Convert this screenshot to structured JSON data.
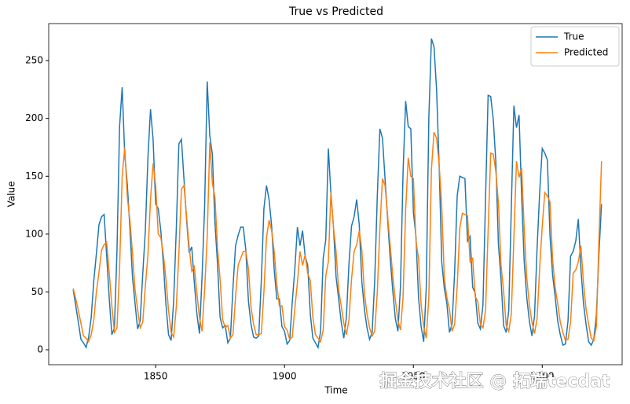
{
  "chart_data": {
    "type": "line",
    "title": "True vs Predicted",
    "xlabel": "Time",
    "ylabel": "Value",
    "x": [
      1818,
      1819,
      1820,
      1821,
      1822,
      1823,
      1824,
      1825,
      1826,
      1827,
      1828,
      1829,
      1830,
      1831,
      1832,
      1833,
      1834,
      1835,
      1836,
      1837,
      1838,
      1839,
      1840,
      1841,
      1842,
      1843,
      1844,
      1845,
      1846,
      1847,
      1848,
      1849,
      1850,
      1851,
      1852,
      1853,
      1854,
      1855,
      1856,
      1857,
      1858,
      1859,
      1860,
      1861,
      1862,
      1863,
      1864,
      1865,
      1866,
      1867,
      1868,
      1869,
      1870,
      1871,
      1872,
      1873,
      1874,
      1875,
      1876,
      1877,
      1878,
      1879,
      1880,
      1881,
      1882,
      1883,
      1884,
      1885,
      1886,
      1887,
      1888,
      1889,
      1890,
      1891,
      1892,
      1893,
      1894,
      1895,
      1896,
      1897,
      1898,
      1899,
      1900,
      1901,
      1902,
      1903,
      1904,
      1905,
      1906,
      1907,
      1908,
      1909,
      1910,
      1911,
      1912,
      1913,
      1914,
      1915,
      1916,
      1917,
      1918,
      1919,
      1920,
      1921,
      1922,
      1923,
      1924,
      1925,
      1926,
      1927,
      1928,
      1929,
      1930,
      1931,
      1932,
      1933,
      1934,
      1935,
      1936,
      1937,
      1938,
      1939,
      1940,
      1941,
      1942,
      1943,
      1944,
      1945,
      1946,
      1947,
      1948,
      1949,
      1950,
      1951,
      1952,
      1953,
      1954,
      1955,
      1956,
      1957,
      1958,
      1959,
      1960,
      1961,
      1962,
      1963,
      1964,
      1965,
      1966,
      1967,
      1968,
      1969,
      1970,
      1971,
      1972,
      1973,
      1974,
      1975,
      1976,
      1977,
      1978,
      1979,
      1980,
      1981,
      1982,
      1983,
      1984,
      1985,
      1986,
      1987,
      1988,
      1989,
      1990,
      1991,
      1992,
      1993,
      1994,
      1995,
      1996,
      1997,
      1998,
      1999,
      2000,
      2001,
      2002,
      2003,
      2004,
      2005,
      2006,
      2007,
      2008,
      2009,
      2010,
      2011,
      2012,
      2013,
      2014,
      2015,
      2016,
      2017,
      2018,
      2019,
      2020,
      2021,
      2022,
      2023
    ],
    "series": [
      {
        "name": "True",
        "color": "#1f77b4",
        "values": [
          52,
          38,
          24,
          9,
          6,
          2,
          11,
          28,
          60,
          83,
          108,
          115,
          117,
          81,
          44,
          13,
          19,
          86,
          193,
          227,
          169,
          143,
          105,
          63,
          40,
          18,
          25,
          66,
          103,
          166,
          208,
          182,
          126,
          122,
          103,
          74,
          39,
          13,
          8,
          43,
          104,
          178,
          182,
          147,
          112,
          84,
          89,
          58,
          31,
          14,
          63,
          124,
          232,
          185,
          169,
          110,
          74,
          28,
          19,
          21,
          6,
          10,
          54,
          90,
          99,
          106,
          106,
          86,
          42,
          22,
          11,
          10,
          12,
          60,
          122,
          142,
          130,
          107,
          69,
          44,
          44,
          20,
          16,
          5,
          8,
          41,
          70,
          106,
          90,
          103,
          81,
          73,
          31,
          10,
          6,
          2,
          16,
          79,
          95,
          174,
          135,
          106,
          63,
          44,
          24,
          10,
          28,
          74,
          107,
          115,
          130,
          108,
          59,
          35,
          19,
          9,
          15,
          60,
          133,
          191,
          183,
          148,
          113,
          79,
          51,
          27,
          16,
          55,
          154,
          215,
          193,
          191,
          119,
          98,
          45,
          20,
          7,
          54,
          201,
          269,
          262,
          225,
          159,
          76,
          53,
          40,
          15,
          22,
          67,
          133,
          150,
          149,
          148,
          94,
          98,
          54,
          49,
          23,
          18,
          39,
          131,
          220,
          219,
          199,
          162,
          91,
          61,
          21,
          15,
          34,
          123,
          211,
          192,
          203,
          133,
          76,
          45,
          25,
          12,
          29,
          88,
          136,
          174,
          170,
          164,
          99,
          65,
          46,
          25,
          13,
          4,
          5,
          25,
          81,
          85,
          94,
          113,
          70,
          40,
          22,
          7,
          4,
          9,
          30,
          83,
          126
        ]
      },
      {
        "name": "Predicted",
        "color": "#ff7f0e",
        "values": [
          53,
          44,
          34,
          23,
          12,
          10,
          7,
          13,
          26,
          50,
          67,
          86,
          91,
          93,
          66,
          38,
          15,
          19,
          70,
          150,
          175,
          132,
          112,
          84,
          52,
          35,
          19,
          24,
          55,
          82,
          130,
          161,
          142,
          100,
          97,
          82,
          61,
          34,
          15,
          11,
          37,
          83,
          139,
          142,
          115,
          89,
          68,
          72,
          49,
          28,
          16,
          52,
          98,
          179,
          144,
          132,
          88,
          61,
          26,
          19,
          21,
          10,
          13,
          46,
          73,
          79,
          85,
          85,
          70,
          37,
          22,
          13,
          13,
          14,
          50,
          97,
          112,
          103,
          85,
          57,
          38,
          38,
          20,
          17,
          9,
          11,
          36,
          58,
          85,
          73,
          82,
          66,
          60,
          28,
          13,
          10,
          7,
          17,
          64,
          76,
          136,
          106,
          85,
          52,
          38,
          23,
          13,
          26,
          61,
          85,
          91,
          103,
          86,
          49,
          31,
          19,
          12,
          16,
          50,
          105,
          148,
          142,
          116,
          90,
          64,
          43,
          25,
          17,
          46,
          121,
          166,
          150,
          148,
          94,
          79,
          39,
          20,
          10,
          46,
          156,
          188,
          183,
          160,
          124,
          62,
          45,
          35,
          16,
          22,
          55,
          105,
          118,
          117,
          116,
          76,
          79,
          46,
          42,
          22,
          19,
          34,
          103,
          170,
          169,
          154,
          127,
          73,
          51,
          21,
          16,
          31,
          97,
          163,
          149,
          157,
          105,
          62,
          39,
          24,
          14,
          27,
          71,
          107,
          136,
          133,
          128,
          79,
          54,
          40,
          24,
          15,
          8,
          9,
          24,
          66,
          69,
          76,
          90,
          58,
          35,
          22,
          10,
          8,
          20,
          95,
          163
        ]
      }
    ],
    "xlim": [
      1808.5,
      2031
    ],
    "ylim": [
      -12.9,
      282
    ],
    "xticks": [
      1850,
      1900,
      1950,
      2000
    ],
    "yticks": [
      0,
      50,
      100,
      150,
      200,
      250
    ],
    "grid": false,
    "legend": "upper right"
  },
  "watermark": "掘金技术社区 @ 拓端tecdat"
}
